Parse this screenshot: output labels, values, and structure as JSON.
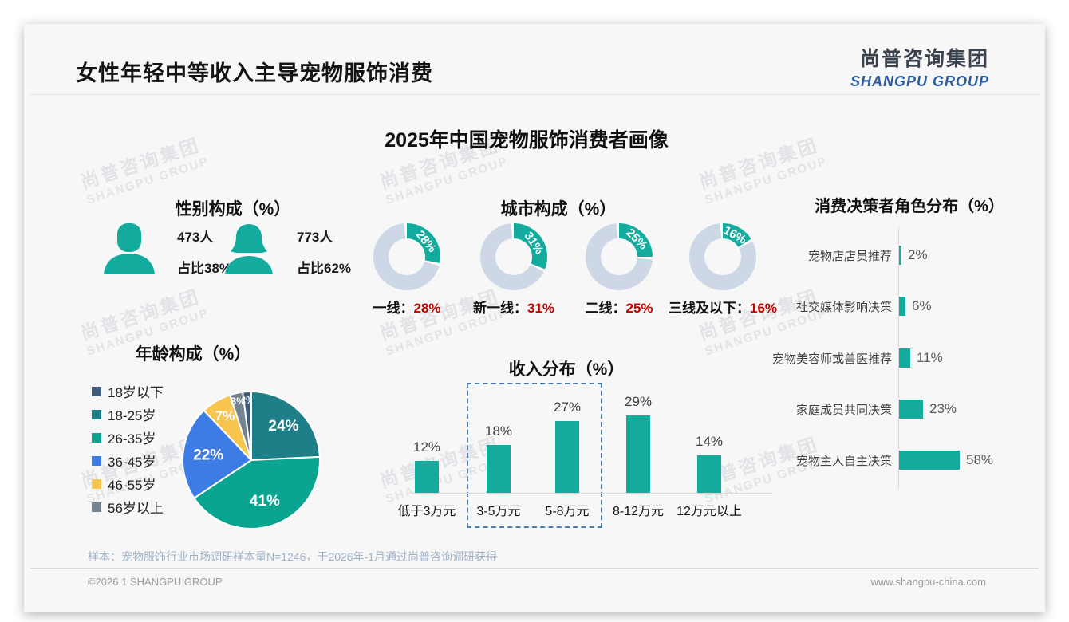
{
  "meta": {
    "header_title": "女性年轻中等收入主导宠物服饰消费",
    "logo_cn": "尚普咨询集团",
    "logo_en": "SHANGPU GROUP",
    "main_title": "2025年中国宠物服饰消费者画像",
    "watermark_cn": "尚普咨询集团",
    "watermark_en": "SHANGPU GROUP",
    "footnote": "样本：宠物服饰行业市场调研样本量N=1246，于2026年-1月通过尚普咨询调研获得",
    "footer_left": "©2026.1 SHANGPU GROUP",
    "footer_right": "www.shangpu-china.com"
  },
  "colors": {
    "accent_teal": "#14ab9f",
    "donut_rest": "#cdd7e6",
    "value_red": "#c00000",
    "logo_blue": "#2d5c9e",
    "logo_dark": "#39424d",
    "axis_gray": "#d8d8d8",
    "highlight_box_blue": "#4d7cae",
    "footnote_blue_gray": "#9fb2c6"
  },
  "chart_data": [
    {
      "id": "gender",
      "type": "pictogram",
      "title": "性别构成（%）",
      "items": [
        {
          "label": "男",
          "count": 473,
          "count_label": "473人",
          "share": 38,
          "share_label": "占比38%"
        },
        {
          "label": "女",
          "count": 773,
          "count_label": "773人",
          "share": 62,
          "share_label": "占比62%"
        }
      ]
    },
    {
      "id": "city",
      "type": "donut",
      "title": "城市构成（%）",
      "categories": [
        "一线",
        "新一线",
        "二线",
        "三线及以下"
      ],
      "values": [
        28,
        31,
        25,
        16
      ],
      "segment_color": "#14ab9f",
      "rest_color": "#cdd7e6",
      "value_color": "#c00000"
    },
    {
      "id": "decision",
      "type": "bar-horizontal",
      "title": "消费决策者角色分布（%）",
      "categories": [
        "宠物店店员推荐",
        "社交媒体影响决策",
        "宠物美容师或兽医推荐",
        "家庭成员共同决策",
        "宠物主人自主决策"
      ],
      "values": [
        2,
        6,
        11,
        23,
        58
      ],
      "bar_color": "#14ab9f",
      "xlim": [
        0,
        60
      ]
    },
    {
      "id": "age",
      "type": "pie",
      "title": "年龄构成（%）",
      "categories": [
        "18岁以下",
        "18-25岁",
        "26-35岁",
        "36-45岁",
        "46-55岁",
        "56岁以上"
      ],
      "values": [
        2,
        24,
        41,
        22,
        7,
        3
      ],
      "colors": [
        "#3e5c7a",
        "#1e7f88",
        "#09a591",
        "#3d7ce4",
        "#f8c54e",
        "#75828f"
      ],
      "legend_position": "left"
    },
    {
      "id": "income",
      "type": "bar",
      "title": "收入分布（%）",
      "categories": [
        "低于3万元",
        "3-5万元",
        "5-8万元",
        "8-12万元",
        "12万元以上"
      ],
      "values": [
        12,
        18,
        27,
        29,
        14
      ],
      "bar_color": "#14ab9f",
      "highlight_box_categories": [
        "3-5万元",
        "5-8万元"
      ],
      "ylim": [
        0,
        32
      ]
    }
  ]
}
